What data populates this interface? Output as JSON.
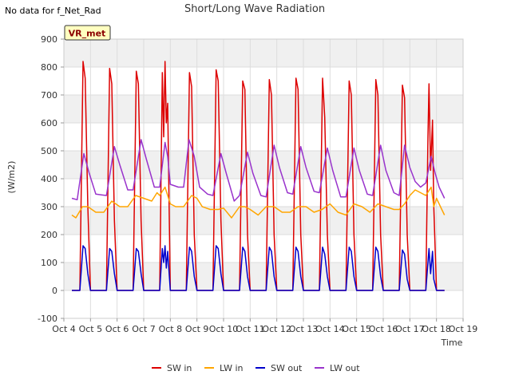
{
  "chart_data": {
    "type": "line",
    "title": "Short/Long Wave Radiation",
    "note": "No data for f_Net_Rad",
    "badge": "VR_met",
    "xlabel": "Time",
    "ylabel": "(W/m2)",
    "ylim": [
      -100,
      900
    ],
    "yticks": [
      -100,
      0,
      100,
      200,
      300,
      400,
      500,
      600,
      700,
      800,
      900
    ],
    "xlim": [
      4,
      19
    ],
    "xticks": [
      {
        "v": 4,
        "label": "Oct 4"
      },
      {
        "v": 5,
        "label": "Oct 5"
      },
      {
        "v": 6,
        "label": "Oct 6"
      },
      {
        "v": 7,
        "label": "Oct 7"
      },
      {
        "v": 8,
        "label": "Oct 8"
      },
      {
        "v": 9,
        "label": "Oct 9"
      },
      {
        "v": 10,
        "label": "Oct 10"
      },
      {
        "v": 11,
        "label": "Oct 11"
      },
      {
        "v": 12,
        "label": "Oct 12"
      },
      {
        "v": 13,
        "label": "Oct 13"
      },
      {
        "v": 14,
        "label": "Oct 14"
      },
      {
        "v": 15,
        "label": "Oct 15"
      },
      {
        "v": 16,
        "label": "Oct 16"
      },
      {
        "v": 17,
        "label": "Oct 17"
      },
      {
        "v": 18,
        "label": "Oct 18"
      },
      {
        "v": 19,
        "label": "Oct 19"
      }
    ],
    "grid": true,
    "legend_position": "bottom",
    "series": [
      {
        "name": "SW in",
        "color": "#dd0000",
        "x": [
          4.3,
          4.6,
          4.72,
          4.8,
          4.9,
          5.0,
          5.3,
          5.6,
          5.72,
          5.8,
          5.9,
          6.0,
          6.3,
          6.6,
          6.72,
          6.8,
          6.9,
          7.0,
          7.3,
          7.6,
          7.7,
          7.75,
          7.8,
          7.85,
          7.9,
          8.0,
          8.3,
          8.6,
          8.72,
          8.8,
          8.9,
          9.0,
          9.3,
          9.6,
          9.72,
          9.8,
          9.9,
          10.0,
          10.3,
          10.6,
          10.72,
          10.8,
          10.9,
          11.0,
          11.3,
          11.6,
          11.72,
          11.8,
          11.9,
          12.0,
          12.3,
          12.6,
          12.72,
          12.8,
          12.9,
          13.0,
          13.3,
          13.6,
          13.72,
          13.8,
          13.9,
          14.0,
          14.3,
          14.6,
          14.72,
          14.8,
          14.9,
          15.0,
          15.3,
          15.6,
          15.72,
          15.8,
          15.9,
          16.0,
          16.3,
          16.6,
          16.72,
          16.8,
          16.9,
          17.0,
          17.3,
          17.6,
          17.68,
          17.72,
          17.78,
          17.85,
          17.9,
          18.0,
          18.3
        ],
        "y": [
          0,
          0,
          820,
          760,
          300,
          0,
          0,
          0,
          795,
          740,
          250,
          0,
          0,
          0,
          785,
          740,
          250,
          0,
          0,
          0,
          780,
          550,
          820,
          600,
          670,
          0,
          0,
          0,
          780,
          730,
          200,
          0,
          0,
          0,
          790,
          750,
          250,
          0,
          0,
          0,
          750,
          720,
          200,
          0,
          0,
          0,
          755,
          700,
          200,
          0,
          0,
          0,
          760,
          720,
          200,
          0,
          0,
          0,
          760,
          620,
          200,
          0,
          0,
          0,
          750,
          700,
          200,
          0,
          0,
          0,
          755,
          700,
          200,
          0,
          0,
          0,
          735,
          690,
          200,
          0,
          0,
          0,
          550,
          740,
          430,
          610,
          300,
          0,
          0
        ]
      },
      {
        "name": "LW in",
        "color": "#ffa500",
        "x": [
          4.3,
          4.45,
          4.7,
          4.9,
          5.2,
          5.5,
          5.8,
          6.1,
          6.4,
          6.7,
          7.0,
          7.3,
          7.5,
          7.6,
          7.8,
          8.0,
          8.2,
          8.5,
          8.8,
          9.0,
          9.2,
          9.5,
          9.8,
          10.0,
          10.3,
          10.6,
          10.8,
          11.0,
          11.3,
          11.6,
          11.9,
          12.2,
          12.5,
          12.8,
          13.1,
          13.4,
          13.7,
          14.0,
          14.3,
          14.6,
          14.9,
          15.2,
          15.5,
          15.8,
          16.1,
          16.4,
          16.6,
          16.8,
          17.0,
          17.2,
          17.4,
          17.6,
          17.8,
          17.9,
          18.0,
          18.2,
          18.3
        ],
        "y": [
          270,
          260,
          300,
          300,
          280,
          280,
          320,
          300,
          300,
          340,
          330,
          320,
          350,
          340,
          370,
          310,
          300,
          300,
          340,
          330,
          300,
          290,
          290,
          295,
          260,
          300,
          300,
          290,
          270,
          300,
          300,
          280,
          280,
          300,
          300,
          280,
          290,
          310,
          280,
          270,
          310,
          300,
          280,
          310,
          300,
          290,
          290,
          310,
          340,
          360,
          350,
          340,
          370,
          300,
          330,
          290,
          270
        ]
      },
      {
        "name": "SW out",
        "color": "#0000cc",
        "x": [
          4.3,
          4.6,
          4.72,
          4.8,
          4.9,
          5.0,
          5.3,
          5.6,
          5.72,
          5.8,
          5.9,
          6.0,
          6.3,
          6.6,
          6.72,
          6.8,
          6.9,
          7.0,
          7.3,
          7.6,
          7.7,
          7.75,
          7.8,
          7.85,
          7.9,
          8.0,
          8.3,
          8.6,
          8.72,
          8.8,
          8.9,
          9.0,
          9.3,
          9.6,
          9.72,
          9.8,
          9.9,
          10.0,
          10.3,
          10.6,
          10.72,
          10.8,
          10.9,
          11.0,
          11.3,
          11.6,
          11.72,
          11.8,
          11.9,
          12.0,
          12.3,
          12.6,
          12.72,
          12.8,
          12.9,
          13.0,
          13.3,
          13.6,
          13.72,
          13.8,
          13.9,
          14.0,
          14.3,
          14.6,
          14.72,
          14.8,
          14.9,
          15.0,
          15.3,
          15.6,
          15.72,
          15.8,
          15.9,
          16.0,
          16.3,
          16.6,
          16.72,
          16.8,
          16.9,
          17.0,
          17.3,
          17.6,
          17.68,
          17.72,
          17.78,
          17.85,
          17.9,
          18.0,
          18.3
        ],
        "y": [
          0,
          0,
          160,
          150,
          60,
          0,
          0,
          0,
          150,
          140,
          60,
          0,
          0,
          0,
          150,
          140,
          60,
          0,
          0,
          0,
          150,
          100,
          160,
          80,
          140,
          0,
          0,
          0,
          155,
          140,
          50,
          0,
          0,
          0,
          160,
          150,
          60,
          0,
          0,
          0,
          155,
          140,
          50,
          0,
          0,
          0,
          155,
          140,
          50,
          0,
          0,
          0,
          155,
          140,
          50,
          0,
          0,
          0,
          155,
          130,
          50,
          0,
          0,
          0,
          155,
          140,
          50,
          0,
          0,
          0,
          155,
          140,
          50,
          0,
          0,
          0,
          145,
          130,
          40,
          0,
          0,
          0,
          100,
          150,
          60,
          140,
          40,
          0,
          0
        ]
      },
      {
        "name": "LW out",
        "color": "#9933cc",
        "x": [
          4.3,
          4.5,
          4.75,
          4.95,
          5.2,
          5.6,
          5.9,
          6.1,
          6.4,
          6.6,
          6.9,
          7.1,
          7.4,
          7.6,
          7.8,
          7.9,
          8.0,
          8.3,
          8.5,
          8.7,
          8.9,
          9.1,
          9.4,
          9.6,
          9.9,
          10.1,
          10.4,
          10.6,
          10.9,
          11.1,
          11.4,
          11.6,
          11.9,
          12.1,
          12.4,
          12.6,
          12.9,
          13.1,
          13.4,
          13.6,
          13.9,
          14.1,
          14.4,
          14.6,
          14.9,
          15.1,
          15.4,
          15.6,
          15.9,
          16.1,
          16.4,
          16.6,
          16.8,
          17.0,
          17.2,
          17.4,
          17.6,
          17.8,
          17.95,
          18.1,
          18.3
        ],
        "y": [
          330,
          325,
          490,
          420,
          345,
          340,
          515,
          450,
          360,
          360,
          540,
          470,
          370,
          370,
          530,
          480,
          380,
          370,
          370,
          540,
          480,
          370,
          345,
          340,
          490,
          420,
          320,
          340,
          495,
          420,
          340,
          335,
          520,
          440,
          350,
          345,
          515,
          440,
          355,
          350,
          510,
          430,
          335,
          335,
          510,
          430,
          345,
          340,
          520,
          430,
          350,
          340,
          520,
          440,
          390,
          370,
          385,
          480,
          420,
          370,
          330
        ]
      }
    ]
  }
}
